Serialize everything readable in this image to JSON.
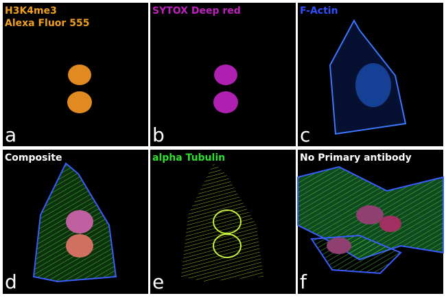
{
  "panels": [
    {
      "title": [
        "H3K4me3",
        "Alexa Fluor 555"
      ],
      "letter": "a",
      "color": "#f0a020"
    },
    {
      "title": [
        "SYTOX Deep red"
      ],
      "letter": "b",
      "color": "#c020c0"
    },
    {
      "title": [
        "F-Actin"
      ],
      "letter": "c",
      "color": "#3050ff"
    },
    {
      "title": [
        "Composite"
      ],
      "letter": "d",
      "color": "#ffffff"
    },
    {
      "title": [
        "alpha Tubulin"
      ],
      "letter": "e",
      "color": "#30e030"
    },
    {
      "title": [
        "No Primary antibody"
      ],
      "letter": "f",
      "color": "#ffffff"
    }
  ]
}
